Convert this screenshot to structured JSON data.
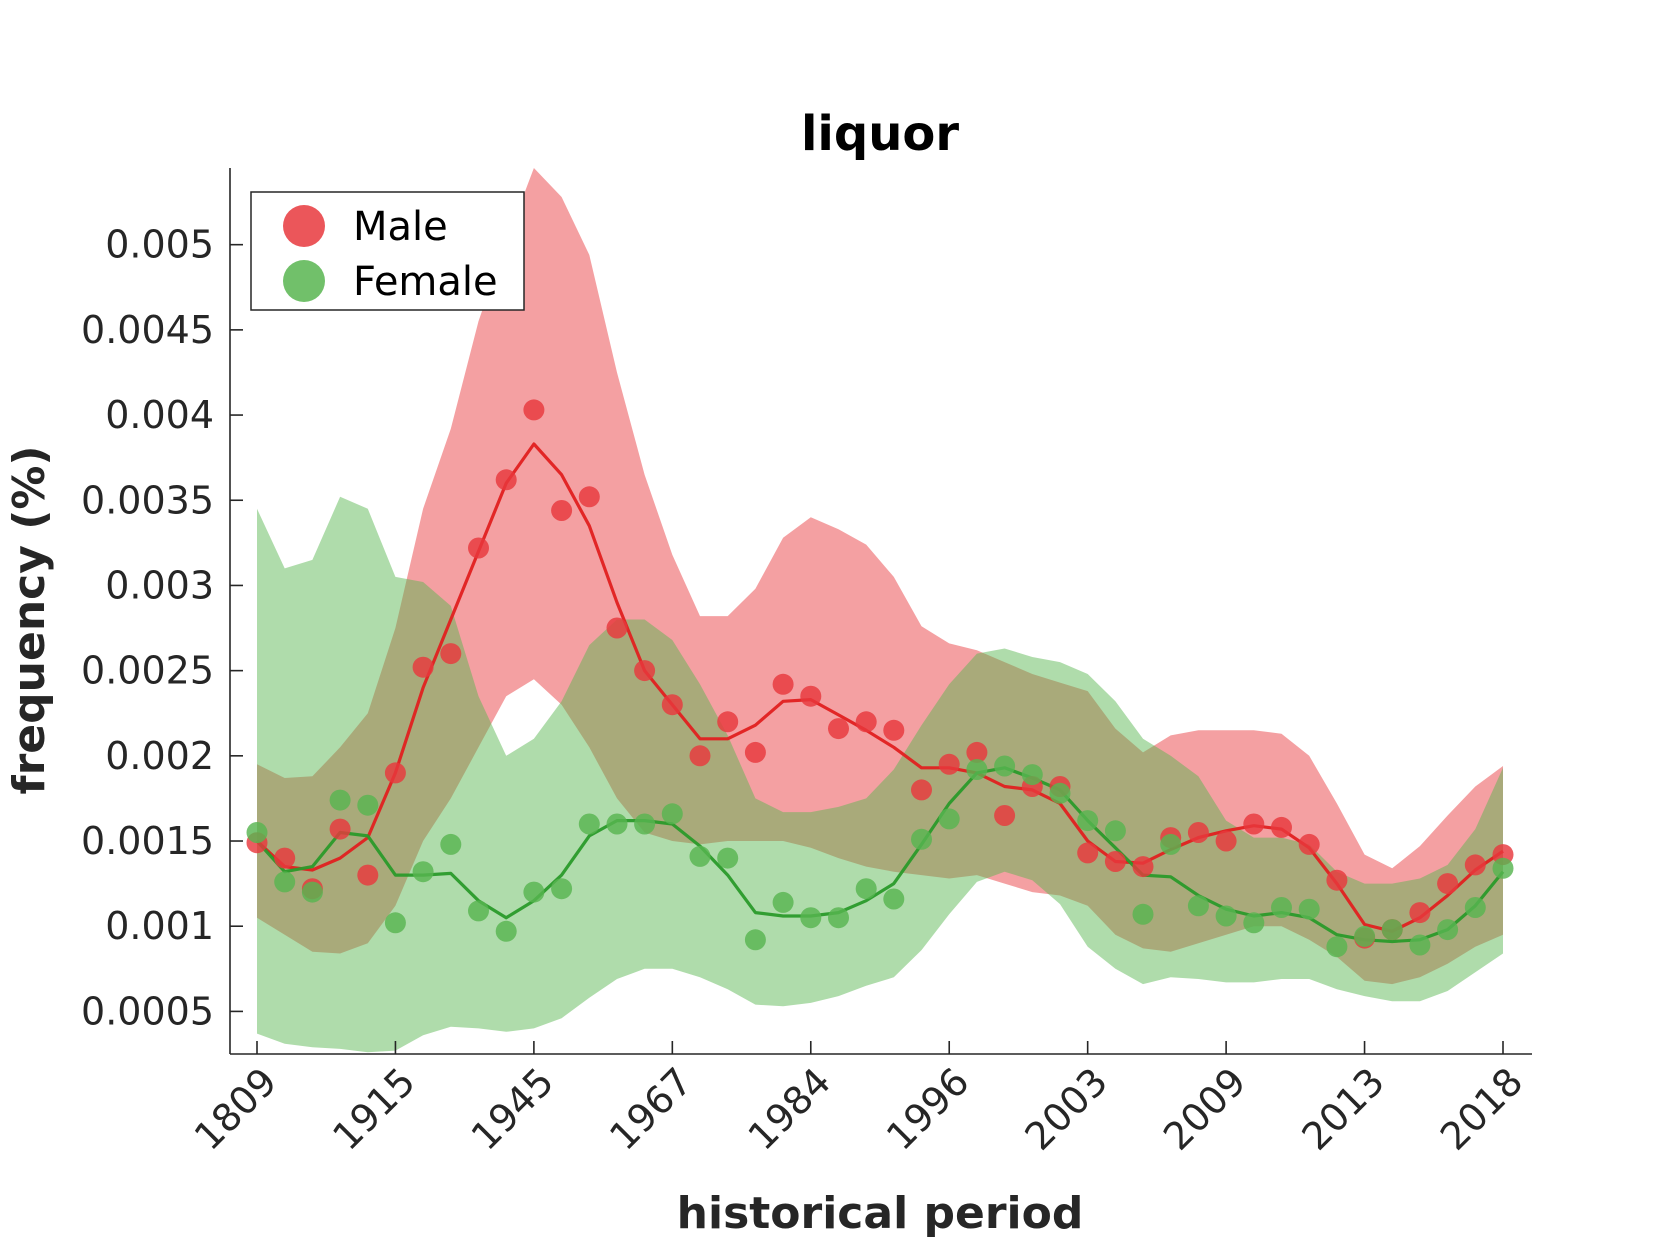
{
  "chart_data": {
    "type": "line",
    "title": "liquor",
    "xlabel": "historical period",
    "ylabel": "frequency (%)",
    "x_tick_labels": [
      "1809",
      "1915",
      "1945",
      "1967",
      "1984",
      "1996",
      "2003",
      "2009",
      "2013",
      "2018"
    ],
    "y_ticks": [
      0.0005,
      0.001,
      0.0015,
      0.002,
      0.0025,
      0.003,
      0.0035,
      0.004,
      0.0045,
      0.005
    ],
    "y_tick_labels": [
      "0.0005",
      "0.001",
      "0.0015",
      "0.002",
      "0.0025",
      "0.003",
      "0.0035",
      "0.004",
      "0.0045",
      "0.005"
    ],
    "ylim": [
      0.00025,
      0.00545
    ],
    "x_range": [
      0,
      45
    ],
    "legend_position": "top-left",
    "grid": false,
    "series": [
      {
        "name": "Male",
        "color": "#e8383d",
        "line_color": "#e02020",
        "points": [
          0.00149,
          0.0014,
          0.00122,
          0.00157,
          0.0013,
          0.0019,
          0.00252,
          0.0026,
          0.00322,
          0.00362,
          0.00403,
          0.00344,
          0.00352,
          0.00275,
          0.0025,
          0.0023,
          0.002,
          0.0022,
          0.00202,
          0.00242,
          0.00235,
          0.00216,
          0.0022,
          0.00215,
          0.0018,
          0.00195,
          0.00202,
          0.00165,
          0.00182,
          0.00182,
          0.00143,
          0.00138,
          0.00135,
          0.00152,
          0.00155,
          0.0015,
          0.0016,
          0.00158,
          0.00148,
          0.00127,
          0.00093,
          0.00098,
          0.00108,
          0.00125,
          0.00136,
          0.00142
        ],
        "trend": [
          0.0015,
          0.00135,
          0.00133,
          0.0014,
          0.00152,
          0.0019,
          0.0024,
          0.0028,
          0.0032,
          0.0036,
          0.00383,
          0.00365,
          0.00335,
          0.0029,
          0.0025,
          0.0023,
          0.0021,
          0.0021,
          0.00218,
          0.00232,
          0.00233,
          0.00224,
          0.00215,
          0.00205,
          0.00193,
          0.00193,
          0.0019,
          0.00182,
          0.0018,
          0.00172,
          0.0015,
          0.00138,
          0.00137,
          0.00145,
          0.00152,
          0.00156,
          0.00159,
          0.00157,
          0.00146,
          0.00125,
          0.00101,
          0.00097,
          0.00105,
          0.00118,
          0.00133,
          0.00144
        ],
        "band_upper": [
          0.00195,
          0.00187,
          0.00188,
          0.00205,
          0.00225,
          0.00275,
          0.00345,
          0.00392,
          0.00455,
          0.00502,
          0.00545,
          0.00528,
          0.00494,
          0.00425,
          0.00365,
          0.00318,
          0.00282,
          0.00282,
          0.00298,
          0.00328,
          0.0034,
          0.00333,
          0.00324,
          0.00305,
          0.00276,
          0.00266,
          0.00262,
          0.00255,
          0.00248,
          0.00243,
          0.00238,
          0.00216,
          0.00202,
          0.00212,
          0.00215,
          0.00215,
          0.00215,
          0.00213,
          0.002,
          0.00172,
          0.00142,
          0.00134,
          0.00147,
          0.00165,
          0.00182,
          0.00194
        ],
        "band_lower": [
          0.00105,
          0.00095,
          0.00085,
          0.00084,
          0.0009,
          0.00112,
          0.0015,
          0.00175,
          0.00205,
          0.00235,
          0.00245,
          0.0023,
          0.00205,
          0.00175,
          0.00155,
          0.0015,
          0.00148,
          0.0015,
          0.0015,
          0.0015,
          0.00146,
          0.0014,
          0.00135,
          0.00132,
          0.0013,
          0.00128,
          0.0013,
          0.00125,
          0.0012,
          0.00118,
          0.00112,
          0.00095,
          0.00087,
          0.00085,
          0.0009,
          0.00095,
          0.001,
          0.001,
          0.00092,
          0.00082,
          0.00068,
          0.00066,
          0.0007,
          0.00078,
          0.00088,
          0.00095
        ]
      },
      {
        "name": "Female",
        "color": "#58b550",
        "line_color": "#2a9a2a",
        "points": [
          0.00155,
          0.00126,
          0.0012,
          0.00174,
          0.00171,
          0.00102,
          0.00132,
          0.00148,
          0.00109,
          0.00097,
          0.0012,
          0.00122,
          0.0016,
          0.0016,
          0.0016,
          0.00166,
          0.00141,
          0.0014,
          0.00092,
          0.00114,
          0.00105,
          0.00105,
          0.00122,
          0.00116,
          0.00151,
          0.00163,
          0.00192,
          0.00194,
          0.00189,
          0.00178,
          0.00162,
          0.00156,
          0.00107,
          0.00148,
          0.00112,
          0.00106,
          0.00102,
          0.00111,
          0.0011,
          0.00088,
          0.00094,
          0.00098,
          0.00089,
          0.00098,
          0.00111,
          0.00134
        ],
        "trend": [
          0.0015,
          0.00132,
          0.00135,
          0.00155,
          0.00153,
          0.0013,
          0.0013,
          0.00131,
          0.00115,
          0.00105,
          0.00115,
          0.0013,
          0.00153,
          0.00162,
          0.00162,
          0.0016,
          0.00147,
          0.0013,
          0.00108,
          0.00106,
          0.00106,
          0.00108,
          0.00115,
          0.00125,
          0.00148,
          0.00172,
          0.0019,
          0.00193,
          0.00187,
          0.0018,
          0.00162,
          0.00146,
          0.0013,
          0.00129,
          0.00118,
          0.0011,
          0.00106,
          0.00108,
          0.00105,
          0.00095,
          0.00092,
          0.00091,
          0.00092,
          0.00098,
          0.00112,
          0.00132
        ],
        "band_upper": [
          0.00345,
          0.0031,
          0.00315,
          0.00352,
          0.00345,
          0.00305,
          0.00302,
          0.00288,
          0.00235,
          0.002,
          0.0021,
          0.00232,
          0.00265,
          0.0028,
          0.0028,
          0.00268,
          0.00242,
          0.00212,
          0.00175,
          0.00167,
          0.00167,
          0.0017,
          0.00175,
          0.00192,
          0.00218,
          0.00242,
          0.0026,
          0.00263,
          0.00258,
          0.00255,
          0.00248,
          0.00232,
          0.0021,
          0.002,
          0.00188,
          0.00162,
          0.00152,
          0.00152,
          0.00148,
          0.00132,
          0.00125,
          0.00125,
          0.00128,
          0.00136,
          0.00157,
          0.00193
        ],
        "band_lower": [
          0.00037,
          0.00031,
          0.00029,
          0.00028,
          0.00026,
          0.00027,
          0.00036,
          0.00041,
          0.0004,
          0.00038,
          0.0004,
          0.00046,
          0.00058,
          0.00069,
          0.00075,
          0.00075,
          0.0007,
          0.00063,
          0.00054,
          0.00053,
          0.00055,
          0.00059,
          0.00065,
          0.0007,
          0.00086,
          0.00107,
          0.00126,
          0.00132,
          0.00127,
          0.00113,
          0.00088,
          0.00075,
          0.00066,
          0.0007,
          0.00069,
          0.00067,
          0.00067,
          0.00069,
          0.00069,
          0.00063,
          0.00059,
          0.00056,
          0.00056,
          0.00062,
          0.00073,
          0.00084
        ]
      }
    ]
  }
}
